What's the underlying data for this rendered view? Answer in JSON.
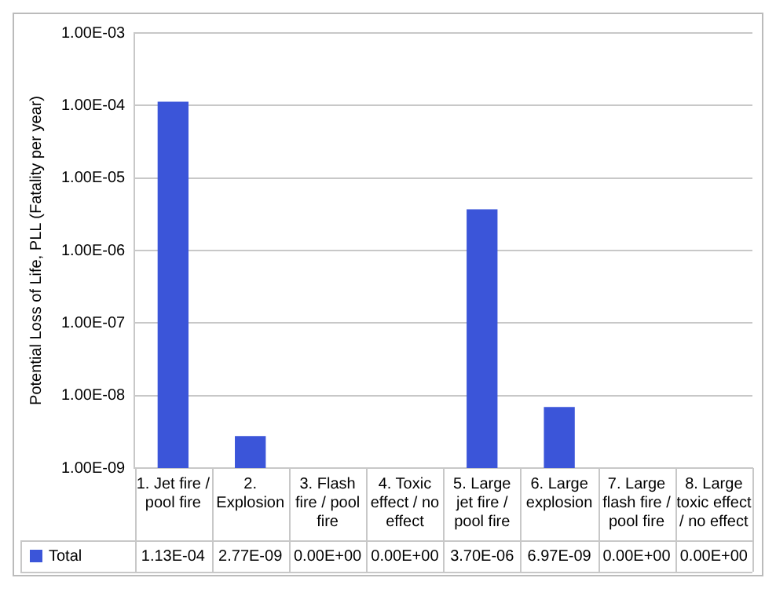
{
  "chart_data": {
    "type": "bar",
    "ylabel": "Potential Loss of Life, PLL (Fatality per year)",
    "categories": [
      "1. Jet fire / pool fire",
      "2. Explosion",
      "3. Flash fire / pool fire",
      "4. Toxic effect / no effect",
      "5. Large jet fire / pool fire",
      "6. Large explosion",
      "7. Large flash fire / pool fire",
      "8. Large toxic effect / no effect"
    ],
    "series": [
      {
        "name": "Total",
        "color": "#3b55d9",
        "values": [
          0.000113,
          2.77e-09,
          null,
          null,
          3.7e-06,
          6.97e-09,
          null,
          null
        ],
        "value_labels": [
          "1.13E-04",
          "2.77E-09",
          "0.00E+00",
          "0.00E+00",
          "3.70E-06",
          "6.97E-09",
          "0.00E+00",
          "0.00E+00"
        ]
      }
    ],
    "log": "y",
    "ylim": [
      1e-09,
      0.001
    ],
    "yticks": [
      {
        "value": 1e-09,
        "label": "1.00E-09"
      },
      {
        "value": 1e-08,
        "label": "1.00E-08"
      },
      {
        "value": 1e-07,
        "label": "1.00E-07"
      },
      {
        "value": 1e-06,
        "label": "1.00E-06"
      },
      {
        "value": 1e-05,
        "label": "1.00E-05"
      },
      {
        "value": 0.0001,
        "label": "1.00E-04"
      },
      {
        "value": 0.001,
        "label": "1.00E-03"
      }
    ],
    "grid": "y",
    "legend": "bottom left"
  }
}
